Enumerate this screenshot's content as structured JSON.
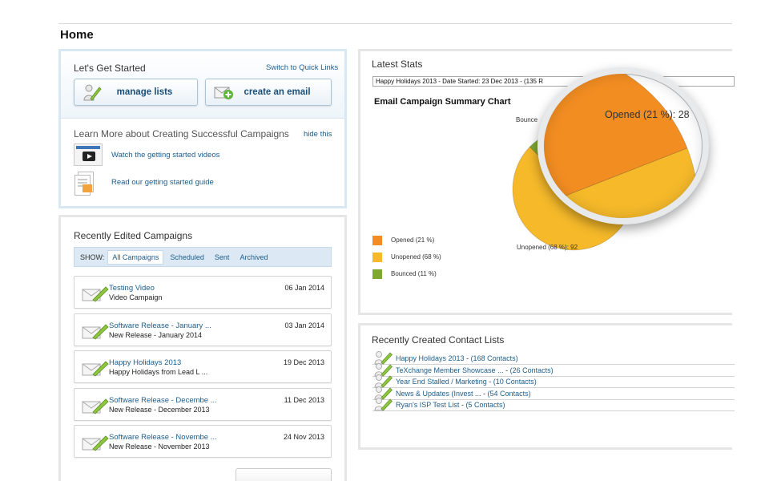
{
  "page": {
    "title": "Home"
  },
  "getting_started": {
    "title": "Let's Get Started",
    "switch_link": "Switch to Quick Links",
    "manage_lists_label": "manage lists",
    "create_email_label": "create an email",
    "learn_title": "Learn More about Creating Successful Campaigns",
    "hide_link": "hide this",
    "videos_link": "Watch the getting started videos",
    "guide_link": "Read our getting started guide"
  },
  "edited_campaigns": {
    "title": "Recently Edited Campaigns",
    "show_label": "SHOW:",
    "tabs": [
      {
        "label": "All Campaigns",
        "active": true
      },
      {
        "label": "Scheduled",
        "active": false
      },
      {
        "label": "Sent",
        "active": false
      },
      {
        "label": "Archived",
        "active": false
      }
    ],
    "items": [
      {
        "name": "Testing Video",
        "subtitle": "Video Campaign",
        "date": "06 Jan 2014"
      },
      {
        "name": "Software Release - January ...",
        "subtitle": "New Release - January 2014",
        "date": "03 Jan 2014"
      },
      {
        "name": "Happy Holidays 2013",
        "subtitle": "Happy Holidays from Lead L ...",
        "date": "19 Dec 2013"
      },
      {
        "name": "Software Release - Decembe ...",
        "subtitle": "New Release - December 2013",
        "date": "11 Dec 2013"
      },
      {
        "name": "Software Release - Novembe ...",
        "subtitle": "New Release - November 2013",
        "date": "24 Nov 2013"
      }
    ]
  },
  "latest_stats": {
    "title": "Latest Stats",
    "selected_campaign": "Happy Holidays 2013 - Date Started: 23 Dec 2013 - (135 R",
    "magnifier_label": "Opened (21 %): 28",
    "unopened_label": "Unopened (68 %): 92",
    "bounced_label": "Bounce"
  },
  "chart_data": {
    "type": "pie",
    "title": "Email Campaign Summary Chart",
    "legend_position": "bottom-left",
    "slices": [
      {
        "name": "Opened (21 %)",
        "value": 28,
        "percent": 21,
        "color": "#f28d22"
      },
      {
        "name": "Unopened (68 %)",
        "value": 92,
        "percent": 68,
        "color": "#f5b92a"
      },
      {
        "name": "Bounced (11 %)",
        "value": 15,
        "percent": 11,
        "color": "#7fa832"
      }
    ]
  },
  "contact_lists": {
    "title": "Recently Created Contact Lists",
    "items": [
      {
        "name": "Happy Holidays 2013",
        "count": "(168 Contacts)"
      },
      {
        "name": "TeXchange Member Showcase ...",
        "count": "(26 Contacts)"
      },
      {
        "name": "Year End Stalled / Marketing",
        "count": "(10 Contacts)"
      },
      {
        "name": "News & Updates (Invest ...",
        "count": "(54 Contacts)"
      },
      {
        "name": "Ryan's ISP Test List",
        "count": "(5 Contacts)"
      }
    ]
  },
  "colors": {
    "link": "#1c5d8c",
    "panel_border": "#d8e8f2",
    "accent_green": "#8dc63f"
  }
}
